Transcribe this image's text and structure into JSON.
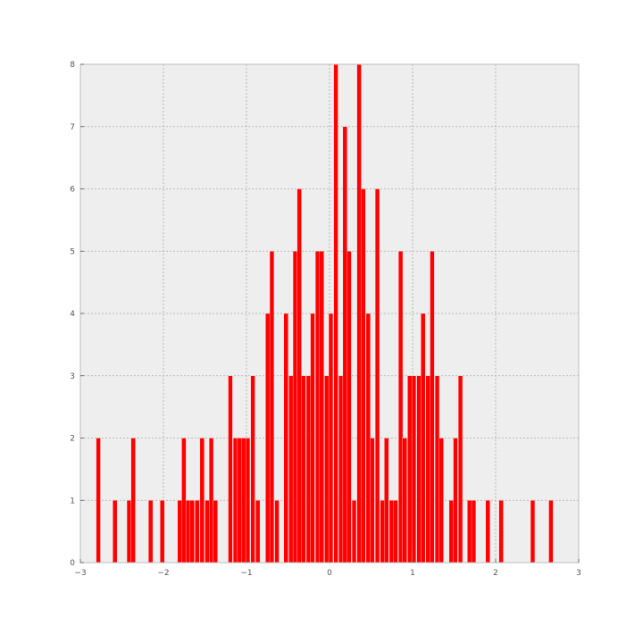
{
  "chart_data": {
    "type": "bar",
    "title": "",
    "xlabel": "",
    "ylabel": "",
    "xlim": [
      -3,
      3
    ],
    "ylim": [
      0,
      8
    ],
    "grid": true,
    "colors": {
      "bar": "#ff0000",
      "plot_bg": "#eeeeee",
      "grid": "#aaaaaa",
      "frame": "#bcbcbc"
    },
    "bin_width": 0.052,
    "x_ticks": [
      {
        "value": -3,
        "label": "−3"
      },
      {
        "value": -2,
        "label": "−2"
      },
      {
        "value": -1,
        "label": "−1"
      },
      {
        "value": 0,
        "label": "0"
      },
      {
        "value": 1,
        "label": "1"
      },
      {
        "value": 2,
        "label": "2"
      },
      {
        "value": 3,
        "label": "3"
      }
    ],
    "y_ticks": [
      {
        "value": 0,
        "label": "0"
      },
      {
        "value": 1,
        "label": "1"
      },
      {
        "value": 2,
        "label": "2"
      },
      {
        "value": 3,
        "label": "3"
      },
      {
        "value": 4,
        "label": "4"
      },
      {
        "value": 5,
        "label": "5"
      },
      {
        "value": 6,
        "label": "6"
      },
      {
        "value": 7,
        "label": "7"
      },
      {
        "value": 8,
        "label": "8"
      }
    ],
    "bins": [
      {
        "x": -2.81,
        "count": 2
      },
      {
        "x": -2.61,
        "count": 1
      },
      {
        "x": -2.44,
        "count": 1
      },
      {
        "x": -2.39,
        "count": 2
      },
      {
        "x": -2.18,
        "count": 1
      },
      {
        "x": -2.04,
        "count": 1
      },
      {
        "x": -1.83,
        "count": 1
      },
      {
        "x": -1.78,
        "count": 2
      },
      {
        "x": -1.73,
        "count": 1
      },
      {
        "x": -1.68,
        "count": 1
      },
      {
        "x": -1.62,
        "count": 1
      },
      {
        "x": -1.56,
        "count": 2
      },
      {
        "x": -1.5,
        "count": 1
      },
      {
        "x": -1.45,
        "count": 2
      },
      {
        "x": -1.4,
        "count": 1
      },
      {
        "x": -1.22,
        "count": 3
      },
      {
        "x": -1.16,
        "count": 2
      },
      {
        "x": -1.11,
        "count": 2
      },
      {
        "x": -1.06,
        "count": 2
      },
      {
        "x": -1.01,
        "count": 2
      },
      {
        "x": -0.95,
        "count": 3
      },
      {
        "x": -0.89,
        "count": 1
      },
      {
        "x": -0.77,
        "count": 4
      },
      {
        "x": -0.72,
        "count": 5
      },
      {
        "x": -0.66,
        "count": 1
      },
      {
        "x": -0.55,
        "count": 4
      },
      {
        "x": -0.49,
        "count": 3
      },
      {
        "x": -0.44,
        "count": 5
      },
      {
        "x": -0.39,
        "count": 6
      },
      {
        "x": -0.34,
        "count": 3
      },
      {
        "x": -0.28,
        "count": 3
      },
      {
        "x": -0.23,
        "count": 4
      },
      {
        "x": -0.17,
        "count": 5
      },
      {
        "x": -0.12,
        "count": 5
      },
      {
        "x": -0.06,
        "count": 3
      },
      {
        "x": -0.01,
        "count": 4
      },
      {
        "x": 0.05,
        "count": 8
      },
      {
        "x": 0.11,
        "count": 3
      },
      {
        "x": 0.16,
        "count": 7
      },
      {
        "x": 0.21,
        "count": 5
      },
      {
        "x": 0.27,
        "count": 1
      },
      {
        "x": 0.33,
        "count": 8
      },
      {
        "x": 0.38,
        "count": 6
      },
      {
        "x": 0.44,
        "count": 4
      },
      {
        "x": 0.49,
        "count": 2
      },
      {
        "x": 0.55,
        "count": 6
      },
      {
        "x": 0.61,
        "count": 1
      },
      {
        "x": 0.66,
        "count": 2
      },
      {
        "x": 0.72,
        "count": 1
      },
      {
        "x": 0.77,
        "count": 1
      },
      {
        "x": 0.83,
        "count": 5
      },
      {
        "x": 0.88,
        "count": 2
      },
      {
        "x": 0.94,
        "count": 3
      },
      {
        "x": 0.99,
        "count": 3
      },
      {
        "x": 1.05,
        "count": 3
      },
      {
        "x": 1.1,
        "count": 4
      },
      {
        "x": 1.16,
        "count": 3
      },
      {
        "x": 1.21,
        "count": 5
      },
      {
        "x": 1.27,
        "count": 3
      },
      {
        "x": 1.32,
        "count": 2
      },
      {
        "x": 1.44,
        "count": 1
      },
      {
        "x": 1.49,
        "count": 2
      },
      {
        "x": 1.55,
        "count": 3
      },
      {
        "x": 1.66,
        "count": 1
      },
      {
        "x": 1.71,
        "count": 1
      },
      {
        "x": 1.88,
        "count": 1
      },
      {
        "x": 2.04,
        "count": 1
      },
      {
        "x": 2.42,
        "count": 1
      },
      {
        "x": 2.64,
        "count": 1
      }
    ]
  }
}
